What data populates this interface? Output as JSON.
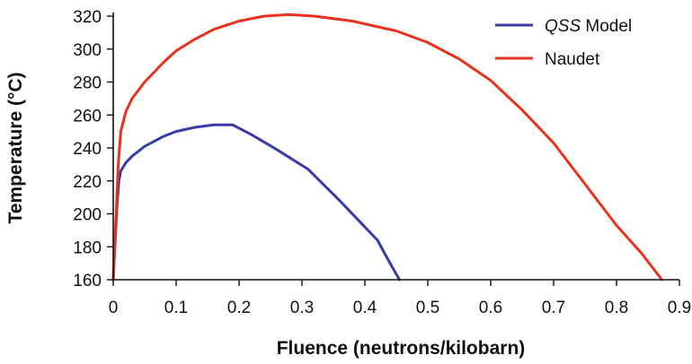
{
  "chart_data": {
    "type": "line",
    "title": "",
    "xlabel": "Fluence (neutrons/kilobarn)",
    "ylabel": "Temperature (°C)",
    "xlim": [
      0,
      0.9
    ],
    "ylim": [
      160,
      320
    ],
    "x_ticks": [
      "0",
      "0.1",
      "0.2",
      "0.3",
      "0.4",
      "0.5",
      "0.6",
      "0.7",
      "0.8",
      "0.9"
    ],
    "y_ticks": [
      "160",
      "180",
      "200",
      "220",
      "240",
      "260",
      "280",
      "300",
      "320"
    ],
    "x_tick_values": [
      0,
      0.1,
      0.2,
      0.3,
      0.4,
      0.5,
      0.6,
      0.7,
      0.8,
      0.9
    ],
    "y_tick_values": [
      160,
      180,
      200,
      220,
      240,
      260,
      280,
      300,
      320
    ],
    "grid": false,
    "legend_position": "top-right",
    "series": [
      {
        "name": "Model",
        "name_prefix_italic": "QSS",
        "color": "#3a3aa8",
        "x": [
          0,
          0.003,
          0.006,
          0.009,
          0.012,
          0.02,
          0.03,
          0.05,
          0.08,
          0.1,
          0.13,
          0.16,
          0.19,
          0.22,
          0.26,
          0.31,
          0.36,
          0.4,
          0.42,
          0.44,
          0.455
        ],
        "y": [
          160,
          182,
          205,
          220,
          226,
          231,
          235,
          241,
          247,
          250,
          252.5,
          254,
          254,
          248,
          239,
          227,
          208,
          192,
          184,
          170,
          160
        ]
      },
      {
        "name": "Naudet",
        "color": "#e8321e",
        "x": [
          0,
          0.004,
          0.008,
          0.012,
          0.02,
          0.03,
          0.05,
          0.08,
          0.1,
          0.13,
          0.16,
          0.2,
          0.24,
          0.28,
          0.32,
          0.38,
          0.45,
          0.5,
          0.55,
          0.6,
          0.65,
          0.7,
          0.75,
          0.8,
          0.84,
          0.872
        ],
        "y": [
          160,
          195,
          230,
          250,
          262,
          270,
          280,
          292,
          299,
          306,
          312,
          317,
          320,
          321,
          320,
          317,
          311,
          304,
          294,
          281,
          263,
          243,
          218,
          193,
          176,
          160
        ]
      }
    ]
  }
}
